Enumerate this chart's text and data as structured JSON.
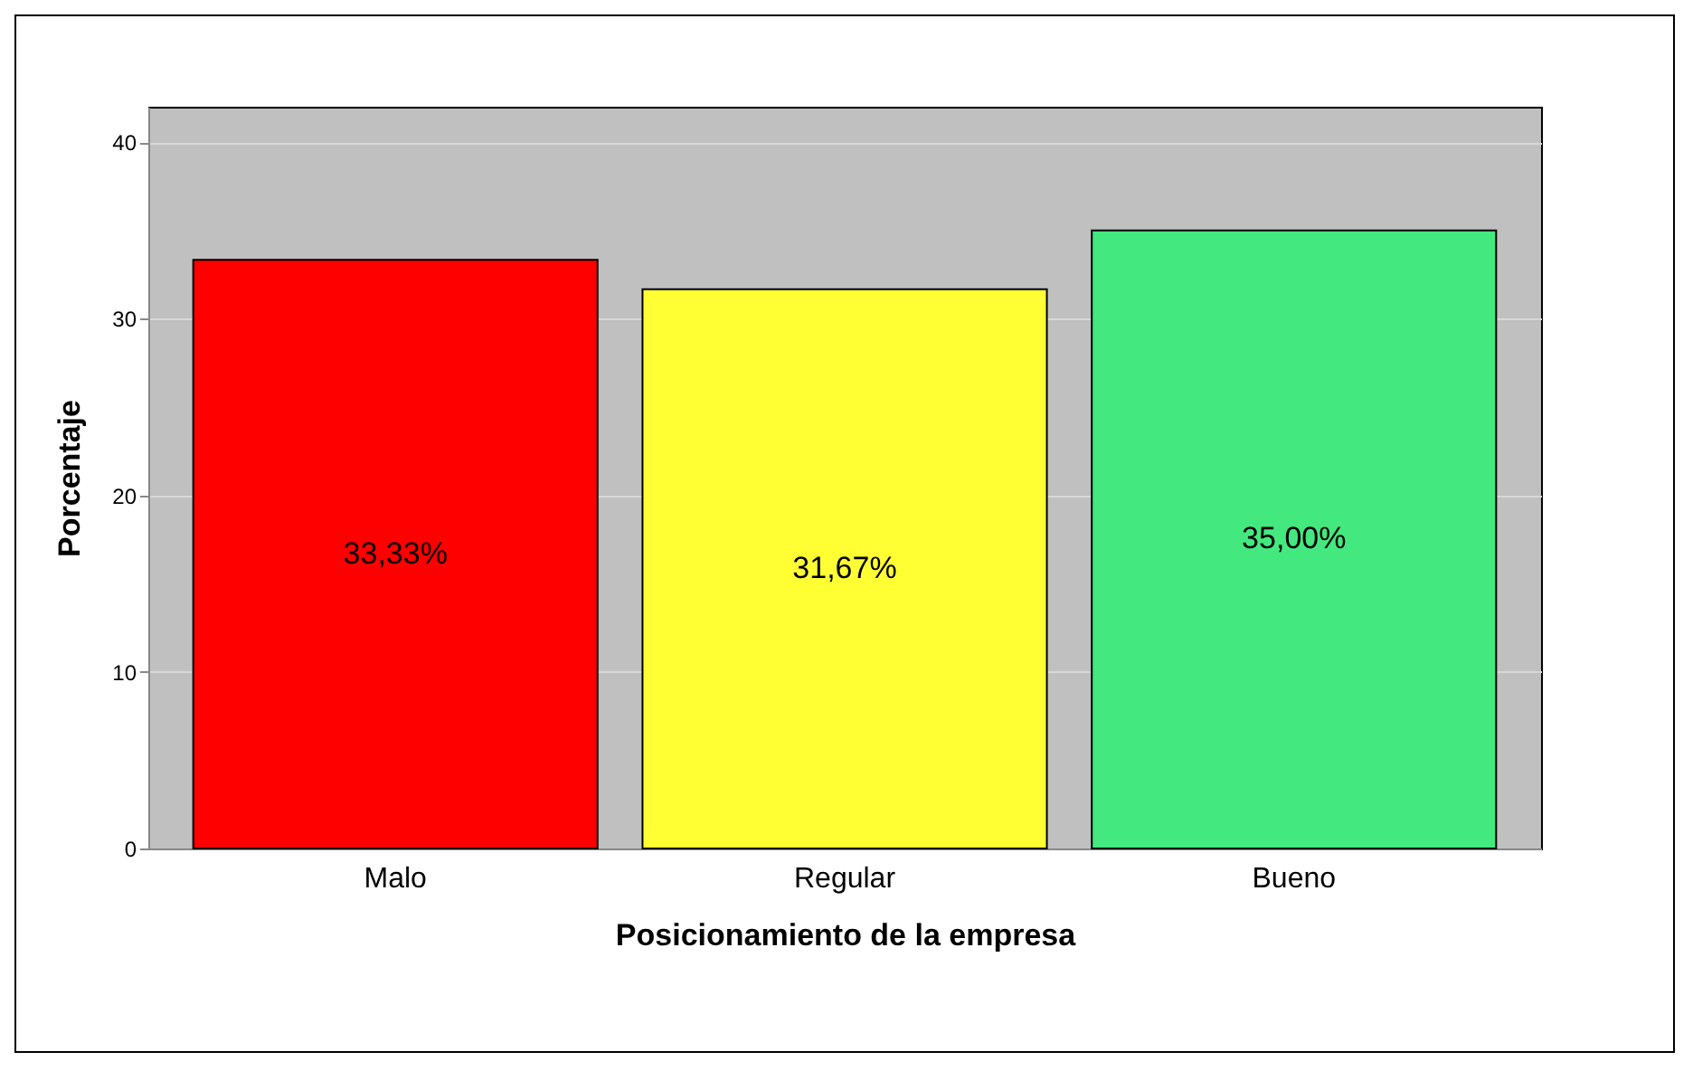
{
  "chart_data": {
    "type": "bar",
    "xlabel": "Posicionamiento de la empresa",
    "ylabel": "Porcentaje",
    "categories": [
      "Malo",
      "Regular",
      "Bueno"
    ],
    "values": [
      33.33,
      31.67,
      35.0
    ],
    "colors": [
      "#ff0000",
      "#ffff33",
      "#43e97f"
    ],
    "value_labels": [
      "33,33%",
      "31,67%",
      "35,00%"
    ],
    "ylim": [
      0,
      42
    ],
    "yticks": [
      0,
      10,
      20,
      30,
      40
    ],
    "grid": "y"
  }
}
